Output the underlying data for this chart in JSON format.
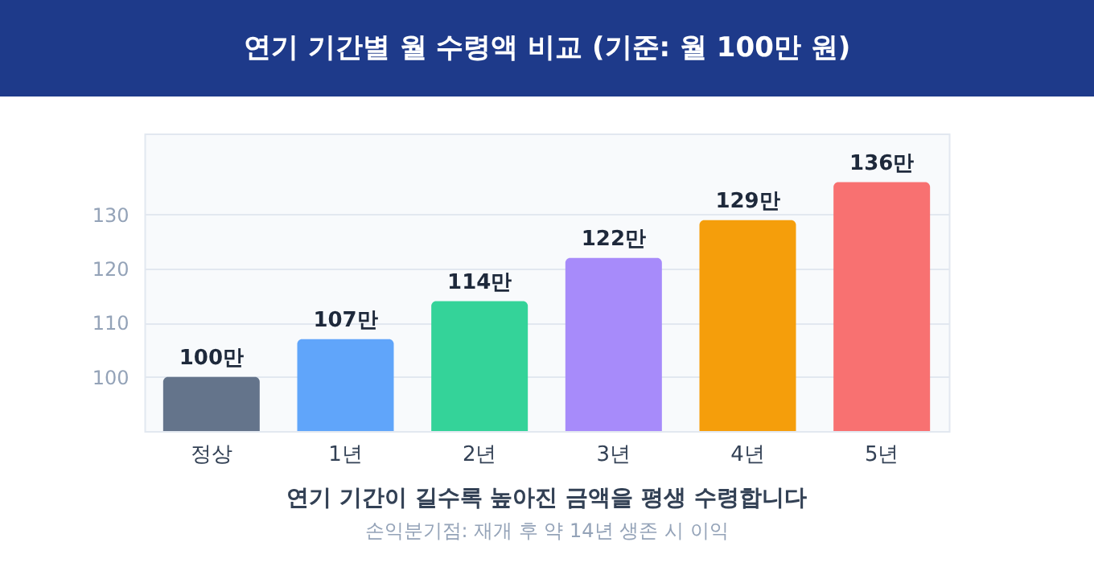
{
  "chart_data": {
    "type": "bar",
    "title": "연기 기간별 월 수령액 비교 (기준: 월 100만 원)",
    "categories": [
      "정상",
      "1년",
      "2년",
      "3년",
      "4년",
      "5년"
    ],
    "values": [
      100,
      107,
      114,
      122,
      129,
      136
    ],
    "colors": [
      "#64748b",
      "#60a5fa",
      "#34d399",
      "#a78bfa",
      "#f59e0b",
      "#f87171"
    ],
    "value_labels": [
      "100만",
      "107만",
      "114만",
      "122만",
      "129만",
      "136만"
    ],
    "ylim": [
      90,
      145
    ],
    "yticks": [
      100,
      110,
      120,
      130
    ],
    "grid": "y",
    "annotations": [
      "연기 기간이 길수록 높아진 금액을 평생 수령합니다",
      "손익분기점: 재개 후 약 14년 생존 시 이익"
    ]
  }
}
